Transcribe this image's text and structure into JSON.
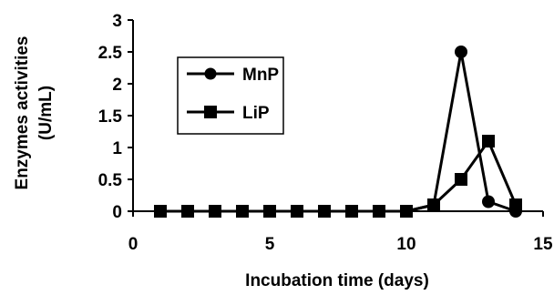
{
  "chart_data": {
    "type": "line",
    "title": "",
    "xlabel": "Incubation time (days)",
    "ylabel_lines": [
      "Enzymes activities",
      "(U/mL)"
    ],
    "xlim": [
      0,
      15
    ],
    "ylim": [
      0,
      3
    ],
    "x_ticks": [
      "0",
      "5",
      "10",
      "15"
    ],
    "y_ticks": [
      "0",
      "0.5",
      "1",
      "1.5",
      "2",
      "2.5",
      "3"
    ],
    "grid": false,
    "legend_position": "upper-left",
    "x": [
      1,
      2,
      3,
      4,
      5,
      6,
      7,
      8,
      9,
      10,
      11,
      12,
      13,
      14
    ],
    "series": [
      {
        "name": "MnP",
        "marker": "circle",
        "color": "#000000",
        "values": [
          0,
          0,
          0,
          0,
          0,
          0,
          0,
          0,
          0,
          0,
          0.1,
          2.5,
          0.15,
          0
        ]
      },
      {
        "name": "LiP",
        "marker": "square",
        "color": "#000000",
        "values": [
          0,
          0,
          0,
          0,
          0,
          0,
          0,
          0,
          0,
          0,
          0.1,
          0.5,
          1.1,
          0.1
        ]
      }
    ]
  }
}
